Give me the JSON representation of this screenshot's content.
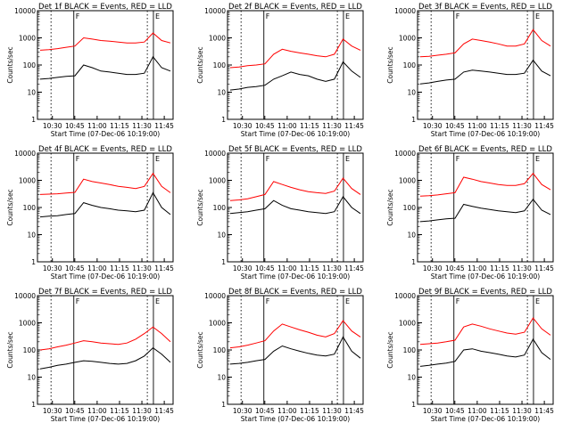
{
  "xlabel": "Start Time (07-Dec-06 10:19:00)",
  "ylabel": "Counts/sec",
  "x_tick_labels": [
    "10:30",
    "10:45",
    "11:00",
    "11:15",
    "11:30",
    "11:45"
  ],
  "y_tick_labels": [
    "1",
    "10",
    "100",
    "1000",
    "10000"
  ],
  "colors": {
    "events": "#000000",
    "lld": "#ff0000",
    "axes": "#000000"
  },
  "chart_data": [
    {
      "type": "line",
      "title": "Det 1f BLACK = Events, RED = LLD",
      "xlabel": "Start Time (07-Dec-06 10:19:00)",
      "ylabel": "Counts/sec",
      "y_scale": "log",
      "ylim": [
        1,
        10000
      ],
      "vertical_markers": [
        {
          "label": "",
          "style": "dotted"
        },
        {
          "label": "F",
          "style": "solid"
        },
        {
          "label": "",
          "style": "dotted"
        },
        {
          "label": "E",
          "style": "solid"
        }
      ],
      "series": [
        {
          "name": "Events",
          "values": [
            30,
            32,
            35,
            38,
            40,
            100,
            80,
            60,
            55,
            50,
            45,
            45,
            50,
            200,
            80,
            60
          ]
        },
        {
          "name": "LLD",
          "values": [
            350,
            370,
            400,
            450,
            500,
            1000,
            900,
            800,
            750,
            700,
            650,
            650,
            700,
            1500,
            800,
            650
          ]
        }
      ]
    },
    {
      "type": "line",
      "title": "Det 2f BLACK = Events, RED = LLD",
      "xlabel": "Start Time (07-Dec-06 10:19:00)",
      "ylabel": "Counts/sec",
      "y_scale": "log",
      "ylim": [
        1,
        10000
      ],
      "vertical_markers": [
        {
          "label": "",
          "style": "dotted"
        },
        {
          "label": "F",
          "style": "solid"
        },
        {
          "label": "",
          "style": "dotted"
        },
        {
          "label": "E",
          "style": "solid"
        }
      ],
      "series": [
        {
          "name": "Events",
          "values": [
            12,
            13,
            15,
            16,
            18,
            30,
            40,
            55,
            45,
            40,
            30,
            25,
            30,
            130,
            60,
            35
          ]
        },
        {
          "name": "LLD",
          "values": [
            80,
            85,
            95,
            100,
            110,
            250,
            380,
            320,
            280,
            250,
            220,
            200,
            250,
            900,
            500,
            350
          ]
        }
      ]
    },
    {
      "type": "line",
      "title": "Det 3f BLACK = Events, RED = LLD",
      "xlabel": "Start Time (07-Dec-06 10:19:00)",
      "ylabel": "Counts/sec",
      "y_scale": "log",
      "ylim": [
        1,
        10000
      ],
      "vertical_markers": [
        {
          "label": "",
          "style": "dotted"
        },
        {
          "label": "F",
          "style": "solid"
        },
        {
          "label": "",
          "style": "dotted"
        },
        {
          "label": "E",
          "style": "solid"
        }
      ],
      "series": [
        {
          "name": "Events",
          "values": [
            20,
            22,
            25,
            28,
            30,
            55,
            65,
            60,
            55,
            50,
            45,
            45,
            50,
            150,
            60,
            40
          ]
        },
        {
          "name": "LLD",
          "values": [
            200,
            210,
            230,
            250,
            280,
            600,
            900,
            800,
            700,
            600,
            500,
            500,
            600,
            2000,
            800,
            500
          ]
        }
      ]
    },
    {
      "type": "line",
      "title": "Det 4f BLACK = Events, RED = LLD",
      "xlabel": "Start Time (07-Dec-06 10:19:00)",
      "ylabel": "Counts/sec",
      "y_scale": "log",
      "ylim": [
        1,
        10000
      ],
      "vertical_markers": [
        {
          "label": "",
          "style": "dotted"
        },
        {
          "label": "F",
          "style": "solid"
        },
        {
          "label": "",
          "style": "dotted"
        },
        {
          "label": "E",
          "style": "solid"
        }
      ],
      "series": [
        {
          "name": "Events",
          "values": [
            45,
            48,
            50,
            55,
            60,
            150,
            120,
            100,
            90,
            80,
            75,
            70,
            80,
            350,
            100,
            55
          ]
        },
        {
          "name": "LLD",
          "values": [
            300,
            310,
            320,
            340,
            360,
            1100,
            900,
            800,
            700,
            600,
            550,
            500,
            600,
            1800,
            600,
            350
          ]
        }
      ]
    },
    {
      "type": "line",
      "title": "Det 5f BLACK = Events, RED = LLD",
      "xlabel": "Start Time (07-Dec-06 10:19:00)",
      "ylabel": "Counts/sec",
      "y_scale": "log",
      "ylim": [
        1,
        10000
      ],
      "vertical_markers": [
        {
          "label": "",
          "style": "dotted"
        },
        {
          "label": "F",
          "style": "solid"
        },
        {
          "label": "",
          "style": "dotted"
        },
        {
          "label": "E",
          "style": "solid"
        }
      ],
      "series": [
        {
          "name": "Events",
          "values": [
            60,
            65,
            70,
            80,
            90,
            180,
            120,
            90,
            80,
            70,
            65,
            60,
            70,
            250,
            100,
            60
          ]
        },
        {
          "name": "LLD",
          "values": [
            180,
            190,
            210,
            250,
            300,
            900,
            700,
            550,
            450,
            380,
            350,
            330,
            400,
            1200,
            500,
            300
          ]
        }
      ]
    },
    {
      "type": "line",
      "title": "Det 6f BLACK = Events, RED = LLD",
      "xlabel": "Start Time (07-Dec-06 10:19:00)",
      "ylabel": "Counts/sec",
      "y_scale": "log",
      "ylim": [
        1,
        10000
      ],
      "vertical_markers": [
        {
          "label": "",
          "style": "dotted"
        },
        {
          "label": "F",
          "style": "solid"
        },
        {
          "label": "",
          "style": "dotted"
        },
        {
          "label": "E",
          "style": "solid"
        }
      ],
      "series": [
        {
          "name": "Events",
          "values": [
            30,
            32,
            35,
            38,
            40,
            130,
            110,
            95,
            85,
            75,
            70,
            65,
            75,
            200,
            80,
            55
          ]
        },
        {
          "name": "LLD",
          "values": [
            260,
            270,
            290,
            320,
            350,
            1300,
            1100,
            900,
            800,
            700,
            650,
            650,
            750,
            1800,
            700,
            450
          ]
        }
      ]
    },
    {
      "type": "line",
      "title": "Det 7f BLACK = Events, RED = LLD",
      "xlabel": "Start Time (07-Dec-06 10:19:00)",
      "ylabel": "Counts/sec",
      "y_scale": "log",
      "ylim": [
        1,
        10000
      ],
      "vertical_markers": [
        {
          "label": "",
          "style": "dotted"
        },
        {
          "label": "F",
          "style": "solid"
        },
        {
          "label": "",
          "style": "dotted"
        },
        {
          "label": "E",
          "style": "solid"
        }
      ],
      "series": [
        {
          "name": "Events",
          "values": [
            20,
            23,
            27,
            30,
            35,
            40,
            38,
            35,
            32,
            30,
            32,
            40,
            60,
            120,
            70,
            35
          ]
        },
        {
          "name": "LLD",
          "values": [
            100,
            110,
            130,
            150,
            180,
            220,
            200,
            180,
            170,
            160,
            180,
            250,
            400,
            700,
            400,
            200
          ]
        }
      ]
    },
    {
      "type": "line",
      "title": "Det 8f BLACK = Events, RED = LLD",
      "xlabel": "Start Time (07-Dec-06 10:19:00)",
      "ylabel": "Counts/sec",
      "y_scale": "log",
      "ylim": [
        1,
        10000
      ],
      "vertical_markers": [
        {
          "label": "",
          "style": "dotted"
        },
        {
          "label": "F",
          "style": "solid"
        },
        {
          "label": "",
          "style": "dotted"
        },
        {
          "label": "E",
          "style": "solid"
        }
      ],
      "series": [
        {
          "name": "Events",
          "values": [
            30,
            32,
            35,
            40,
            45,
            90,
            140,
            110,
            90,
            75,
            65,
            60,
            70,
            300,
            90,
            50
          ]
        },
        {
          "name": "LLD",
          "values": [
            120,
            130,
            150,
            180,
            220,
            500,
            900,
            700,
            550,
            450,
            350,
            300,
            400,
            1200,
            500,
            300
          ]
        }
      ]
    },
    {
      "type": "line",
      "title": "Det 9f BLACK = Events, RED = LLD",
      "xlabel": "Start Time (07-Dec-06 10:19:00)",
      "ylabel": "Counts/sec",
      "y_scale": "log",
      "ylim": [
        1,
        10000
      ],
      "vertical_markers": [
        {
          "label": "",
          "style": "dotted"
        },
        {
          "label": "F",
          "style": "solid"
        },
        {
          "label": "",
          "style": "dotted"
        },
        {
          "label": "E",
          "style": "solid"
        }
      ],
      "series": [
        {
          "name": "Events",
          "values": [
            25,
            27,
            30,
            33,
            38,
            100,
            110,
            90,
            80,
            70,
            60,
            55,
            65,
            250,
            80,
            45
          ]
        },
        {
          "name": "LLD",
          "values": [
            160,
            170,
            180,
            200,
            230,
            700,
            900,
            750,
            600,
            500,
            420,
            380,
            450,
            1500,
            600,
            350
          ]
        }
      ]
    }
  ]
}
